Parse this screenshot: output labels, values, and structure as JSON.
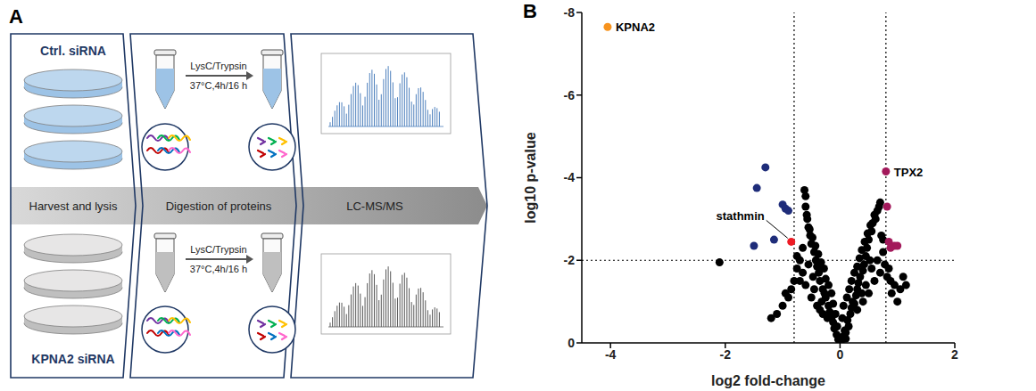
{
  "diagram": {
    "panel_label": "A",
    "steps": [
      "Harvest and lysis",
      "Digestion of proteins",
      "LC-MS/MS"
    ],
    "conditions": [
      {
        "label": "Ctrl. siRNA",
        "enzyme": "LysC/Trypsin",
        "digestion": "37°C,4h/16 h"
      },
      {
        "label": "KPNA2 siRNA",
        "enzyme": "LysC/Trypsin",
        "digestion": "37°C,4h/16 h"
      }
    ]
  },
  "chart_data": {
    "panel_label": "B",
    "type": "scatter",
    "x_label": "log2 fold-change",
    "y_label": "log10 p-value",
    "xlim": [
      -4.5,
      2
    ],
    "ylim": [
      0,
      -8
    ],
    "xticks": [
      -4,
      -2,
      0,
      2
    ],
    "yticks": [
      0,
      -2,
      -4,
      -6,
      -8
    ],
    "thresholds": {
      "x": [
        -0.8,
        0.8
      ],
      "y": -2
    },
    "series": [
      {
        "color": "#000000",
        "x": [
          0,
          0.02,
          -0.03,
          0.05,
          -0.06,
          0.08,
          -0.1,
          0.1,
          -0.12,
          0.13,
          -0.15,
          0.15,
          -0.18,
          0.18,
          -0.2,
          0.2,
          -0.22,
          0.22,
          -0.25,
          0.25,
          -0.27,
          0.28,
          -0.3,
          0.3,
          -0.32,
          0.32,
          -0.35,
          0.35,
          -0.37,
          0.38,
          -0.4,
          0.4,
          -0.42,
          0.42,
          -0.45,
          0.45,
          -0.47,
          0.47,
          -0.5,
          0.5,
          -0.52,
          0.52,
          -0.55,
          0.55,
          -0.57,
          0.57,
          -0.6,
          0.6,
          -0.62,
          0.65,
          0.7,
          0.72,
          -0.65,
          -0.7,
          -0.75,
          0.75,
          0.78,
          -0.8,
          0.82,
          -0.85,
          0.88,
          -0.9,
          0.9,
          -1.0,
          1.0,
          1.05,
          1.1,
          1.15,
          -1.1,
          -1.2,
          0.1,
          -0.05,
          0.04,
          -0.08,
          0.06,
          -0.12,
          0.12,
          -0.15,
          0.16,
          -0.2,
          0.2,
          -0.25,
          0.25,
          -0.28,
          0.3,
          -0.33,
          0.34,
          -0.38,
          0.38,
          -0.43,
          0.43,
          -0.48,
          0.48,
          -0.53,
          0.53,
          -0.58,
          0.62,
          0.68,
          -0.6,
          -0.3,
          0.3,
          -0.4,
          0.4,
          -0.5,
          0.5,
          -0.6,
          0.6,
          -0.7,
          0.7,
          -0.45,
          0.45,
          -0.35,
          0.55,
          -0.55,
          0.65,
          -0.65,
          0.75,
          -0.75,
          0.85,
          -0.95,
          0.95,
          -2.1
        ],
        "values": [
          0,
          -0.05,
          -0.08,
          -0.15,
          -0.2,
          -0.3,
          -0.35,
          -0.25,
          -0.5,
          -0.55,
          -0.6,
          -0.4,
          -0.75,
          -0.7,
          -0.9,
          -0.85,
          -0.6,
          -1.0,
          -1.1,
          -0.95,
          -1.2,
          -1.15,
          -1.3,
          -1.3,
          -1.0,
          -1.45,
          -1.5,
          -1.6,
          -1.7,
          -1.2,
          -1.85,
          -1.75,
          -2.0,
          -1.9,
          -2.2,
          -2.1,
          -1.6,
          -2.3,
          -2.4,
          -2.5,
          -2.6,
          -2.0,
          -2.8,
          -2.7,
          -3.0,
          -2.9,
          -3.3,
          -3.1,
          -3.7,
          -3.2,
          -3.4,
          -2.6,
          -2.3,
          -2.0,
          -1.8,
          -2.2,
          -1.9,
          -1.5,
          -1.6,
          -1.3,
          -1.5,
          -1.1,
          -1.2,
          -0.9,
          -1.0,
          -1.3,
          -1.6,
          -1.4,
          -0.7,
          -0.6,
          -0.1,
          -0.4,
          -0.6,
          -0.7,
          -0.9,
          -0.95,
          -1.1,
          -1.2,
          -1.3,
          -1.4,
          -1.5,
          -1.55,
          -1.7,
          -1.8,
          -1.85,
          -1.95,
          -2.05,
          -2.15,
          -2.25,
          -2.35,
          -2.45,
          -2.55,
          -2.65,
          -2.75,
          -2.85,
          -3.1,
          -3.0,
          -3.3,
          -3.55,
          -0.7,
          -0.8,
          -0.9,
          -1.0,
          -1.1,
          -1.2,
          -1.4,
          -1.5,
          -1.5,
          -1.7,
          -1.3,
          -1.4,
          -0.8,
          -1.8,
          -1.9,
          -2.0,
          -1.7,
          -2.5,
          -2.1,
          -1.8,
          -1.2,
          -1.4,
          -1.95
        ]
      },
      {
        "color": "#1f2d7a",
        "x": [
          -1.3,
          -1.45,
          -1.0,
          -0.95,
          -0.9,
          -1.15,
          -1.5
        ],
        "values": [
          -4.25,
          -3.75,
          -3.35,
          -3.25,
          -3.2,
          -2.5,
          -2.35
        ]
      },
      {
        "color": "#a3195b",
        "x": [
          0.8,
          0.82,
          0.85,
          0.95,
          1.0,
          0.88
        ],
        "values": [
          -4.15,
          -3.3,
          -2.45,
          -2.35,
          -2.35,
          -2.3
        ]
      },
      {
        "color": "#ee1c25",
        "x": [
          -0.85
        ],
        "values": [
          -2.45
        ]
      },
      {
        "color": "#f7931e",
        "x": [
          -4.05
        ],
        "values": [
          -7.65
        ]
      }
    ],
    "annotations": [
      {
        "text": "KPNA2",
        "x": -4.05,
        "y": -7.65
      },
      {
        "text": "TPX2",
        "x": 0.8,
        "y": -4.15
      },
      {
        "text": "stathmin",
        "x": -0.85,
        "y": -2.45
      }
    ]
  }
}
